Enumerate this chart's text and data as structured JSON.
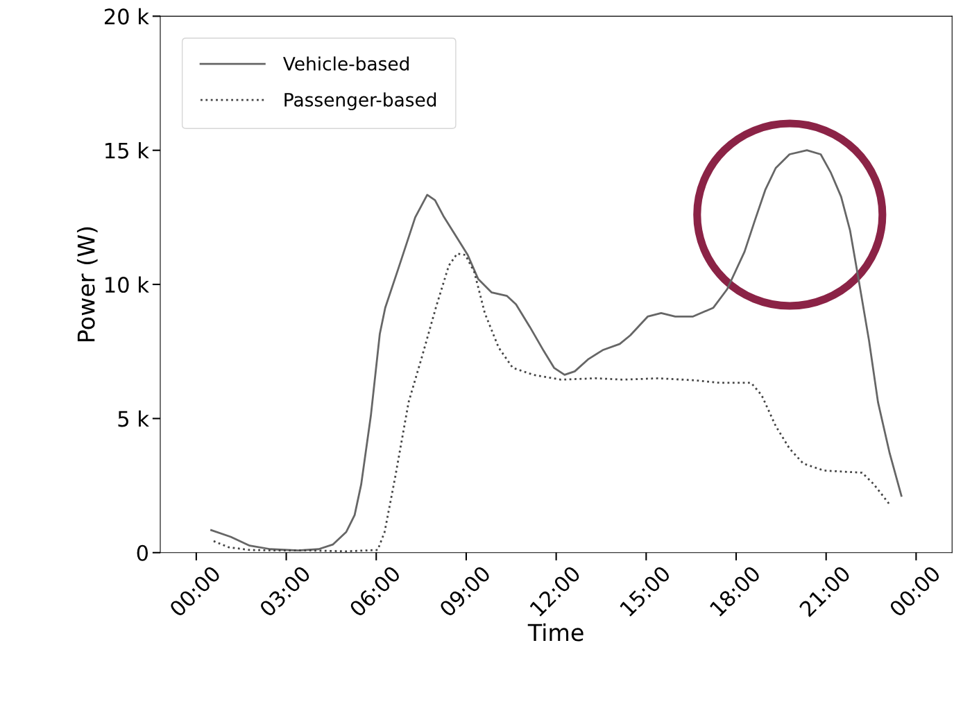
{
  "chart_data": {
    "type": "line",
    "xlabel": "Time",
    "ylabel": "Power (W)",
    "xlim": [
      -1.2,
      25.2
    ],
    "ylim": [
      0,
      20000
    ],
    "xticks": [
      {
        "value": 0,
        "label": "00:00"
      },
      {
        "value": 3,
        "label": "03:00"
      },
      {
        "value": 6,
        "label": "06:00"
      },
      {
        "value": 9,
        "label": "09:00"
      },
      {
        "value": 12,
        "label": "12:00"
      },
      {
        "value": 15,
        "label": "15:00"
      },
      {
        "value": 18,
        "label": "18:00"
      },
      {
        "value": 21,
        "label": "21:00"
      },
      {
        "value": 24,
        "label": "00:00"
      }
    ],
    "yticks": [
      0,
      {
        "value": 5000,
        "label": "5 k"
      },
      {
        "value": 10000,
        "label": "10 k"
      },
      {
        "value": 15000,
        "label": "15 k"
      },
      {
        "value": 20000,
        "label": "20 k"
      }
    ],
    "legend": "top left",
    "grid": false,
    "series": [
      {
        "name": "Vehicle-based",
        "color": "#666666",
        "line_style": "solid",
        "x": [
          0.5,
          1.15,
          1.78,
          2.47,
          3.4,
          4.08,
          4.55,
          5.0,
          5.28,
          5.5,
          5.82,
          6.12,
          6.3,
          6.74,
          7.3,
          7.7,
          7.96,
          8.24,
          8.7,
          9.05,
          9.4,
          9.85,
          10.36,
          10.66,
          11.12,
          11.58,
          11.93,
          12.28,
          12.62,
          13.08,
          13.55,
          14.12,
          14.47,
          15.05,
          15.5,
          15.97,
          16.55,
          17.24,
          17.7,
          18.28,
          18.62,
          18.97,
          19.32,
          19.78,
          20.36,
          20.82,
          21.16,
          21.5,
          21.8,
          22.08,
          22.43,
          22.73,
          23.12,
          23.51
        ],
        "values": [
          840,
          590,
          260,
          130,
          80,
          130,
          300,
          770,
          1400,
          2550,
          5100,
          8160,
          9130,
          10600,
          12500,
          13340,
          13140,
          12550,
          11730,
          11100,
          10200,
          9700,
          9570,
          9260,
          8420,
          7530,
          6890,
          6630,
          6760,
          7220,
          7550,
          7780,
          8100,
          8800,
          8930,
          8800,
          8800,
          9130,
          9820,
          11220,
          12370,
          13520,
          14340,
          14850,
          15000,
          14850,
          14160,
          13270,
          12000,
          10200,
          7910,
          5610,
          3700,
          2120
        ]
      },
      {
        "name": "Passenger-based",
        "color": "#444444",
        "line_style": "dotted",
        "x": [
          0.58,
          1.08,
          1.78,
          2.7,
          3.85,
          5.0,
          6.05,
          6.28,
          6.63,
          7.08,
          7.55,
          8.0,
          8.42,
          8.7,
          8.97,
          9.27,
          9.62,
          10.08,
          10.55,
          11.24,
          12.16,
          13.31,
          14.24,
          15.4,
          16.55,
          17.47,
          18.5,
          18.85,
          19.32,
          19.78,
          20.24,
          20.93,
          22.2,
          22.59,
          23.12
        ],
        "values": [
          430,
          200,
          100,
          80,
          80,
          50,
          100,
          770,
          2800,
          5610,
          7400,
          9180,
          10700,
          11150,
          11100,
          10460,
          8930,
          7650,
          6890,
          6630,
          6450,
          6500,
          6450,
          6500,
          6430,
          6330,
          6330,
          5870,
          4720,
          3880,
          3320,
          3060,
          2980,
          2550,
          1790
        ]
      }
    ]
  }
}
